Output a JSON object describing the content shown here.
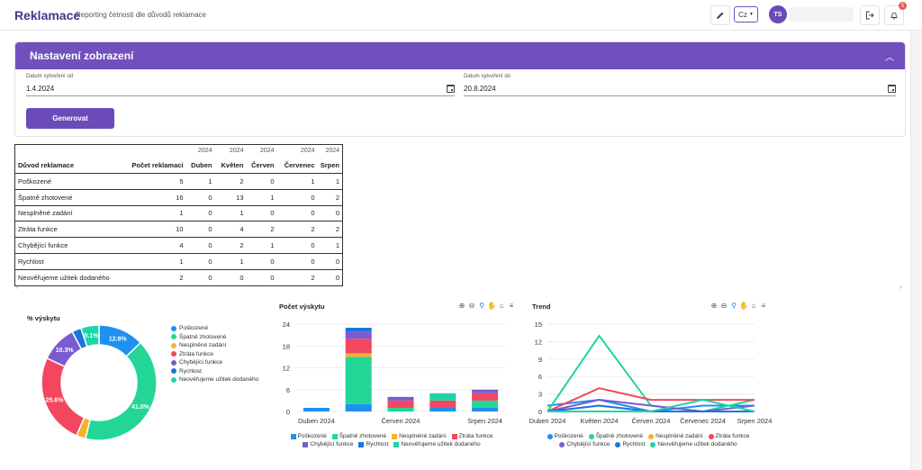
{
  "header": {
    "title": "Reklamace",
    "subtitle": "Reporting četnosti dle důvodů reklamace",
    "language": "Cz",
    "user_initials": "TS",
    "notification_count": "5"
  },
  "settings": {
    "title": "Nastavení zobrazení",
    "date_from_label": "Datum vytvoření od",
    "date_from_value": "1.4.2024",
    "date_to_label": "Datum vytvoření do",
    "date_to_value": "20.8.2024",
    "generate_label": "Generovat"
  },
  "table": {
    "years": [
      "2024",
      "2024",
      "2024",
      "2024",
      "2024"
    ],
    "headers": [
      "Důvod reklamace",
      "Počet reklamací",
      "Duben",
      "Květen",
      "Červen",
      "Červenec",
      "Srpen"
    ],
    "rows": [
      [
        "Poškozené",
        "5",
        "1",
        "2",
        "0",
        "1",
        "1"
      ],
      [
        "Špatně zhotovené",
        "16",
        "0",
        "13",
        "1",
        "0",
        "2"
      ],
      [
        "Nesplněné zadání",
        "1",
        "0",
        "1",
        "0",
        "0",
        "0"
      ],
      [
        "Ztráta funkce",
        "10",
        "0",
        "4",
        "2",
        "2",
        "2"
      ],
      [
        "Chybějící funkce",
        "4",
        "0",
        "2",
        "1",
        "0",
        "1"
      ],
      [
        "Rychlost",
        "1",
        "0",
        "1",
        "0",
        "0",
        "0"
      ],
      [
        "Neověřujeme užitek dodaného",
        "2",
        "0",
        "0",
        "0",
        "2",
        "0"
      ]
    ]
  },
  "colors": {
    "Poškozené": "#1e90f0",
    "Špatně zhotovené": "#23d696",
    "Nesplněné zadání": "#f7b12c",
    "Ztráta funkce": "#f2475e",
    "Chybějící funkce": "#7a5cd0",
    "Rychlost": "#1b74e0",
    "Neověřujeme užitek dodaného": "#1fd4a6"
  },
  "chart_data": [
    {
      "type": "pie",
      "title": "% výskytu",
      "labels": [
        "Poškozené",
        "Špatně zhotovené",
        "Nesplněné zadání",
        "Ztráta funkce",
        "Chybějící funkce",
        "Rychlost",
        "Neověřujeme užitek dodaného"
      ],
      "values": [
        12.8,
        41.0,
        2.6,
        25.6,
        10.3,
        2.6,
        5.1
      ],
      "data_labels": [
        "12.8%",
        "41.0%",
        "",
        "25.6%",
        "10.3%",
        "",
        "5.1%"
      ],
      "legend": "right"
    },
    {
      "type": "bar",
      "stacked": true,
      "title": "Počet výskytu",
      "categories": [
        "Duben 2024",
        "Květen 2024",
        "Červen 2024",
        "Červenec 2024",
        "Srpen 2024"
      ],
      "tick_labels_shown": [
        "Duben 2024",
        "Červen 2024",
        "Srpen 2024"
      ],
      "series": [
        {
          "name": "Poškozené",
          "values": [
            1,
            2,
            0,
            1,
            1
          ]
        },
        {
          "name": "Špatně zhotovené",
          "values": [
            0,
            13,
            1,
            0,
            2
          ]
        },
        {
          "name": "Nesplněné zadání",
          "values": [
            0,
            1,
            0,
            0,
            0
          ]
        },
        {
          "name": "Ztráta funkce",
          "values": [
            0,
            4,
            2,
            2,
            2
          ]
        },
        {
          "name": "Chybějící funkce",
          "values": [
            0,
            2,
            1,
            0,
            1
          ]
        },
        {
          "name": "Rychlost",
          "values": [
            0,
            1,
            0,
            0,
            0
          ]
        },
        {
          "name": "Neověřujeme užitek dodaného",
          "values": [
            0,
            0,
            0,
            2,
            0
          ]
        }
      ],
      "yticks": [
        0,
        6,
        12,
        18,
        24
      ],
      "ylim": [
        0,
        24
      ],
      "legend": "bottom"
    },
    {
      "type": "line",
      "title": "Trend",
      "categories": [
        "Duben 2024",
        "Květen 2024",
        "Červen 2024",
        "Červenec 2024",
        "Srpen 2024"
      ],
      "series": [
        {
          "name": "Poškozené",
          "values": [
            1,
            2,
            0,
            1,
            1
          ]
        },
        {
          "name": "Špatně zhotovené",
          "values": [
            0,
            13,
            1,
            0,
            2
          ]
        },
        {
          "name": "Nesplněné zadání",
          "values": [
            0,
            1,
            0,
            0,
            0
          ]
        },
        {
          "name": "Ztráta funkce",
          "values": [
            0,
            4,
            2,
            2,
            2
          ]
        },
        {
          "name": "Chybějící funkce",
          "values": [
            0,
            2,
            1,
            0,
            1
          ]
        },
        {
          "name": "Rychlost",
          "values": [
            0,
            1,
            0,
            0,
            0
          ]
        },
        {
          "name": "Neověřujeme užitek dodaného",
          "values": [
            0,
            0,
            0,
            2,
            0
          ]
        }
      ],
      "yticks": [
        0,
        3,
        6,
        9,
        12,
        15
      ],
      "ylim": [
        0,
        15
      ],
      "legend": "bottom"
    }
  ]
}
